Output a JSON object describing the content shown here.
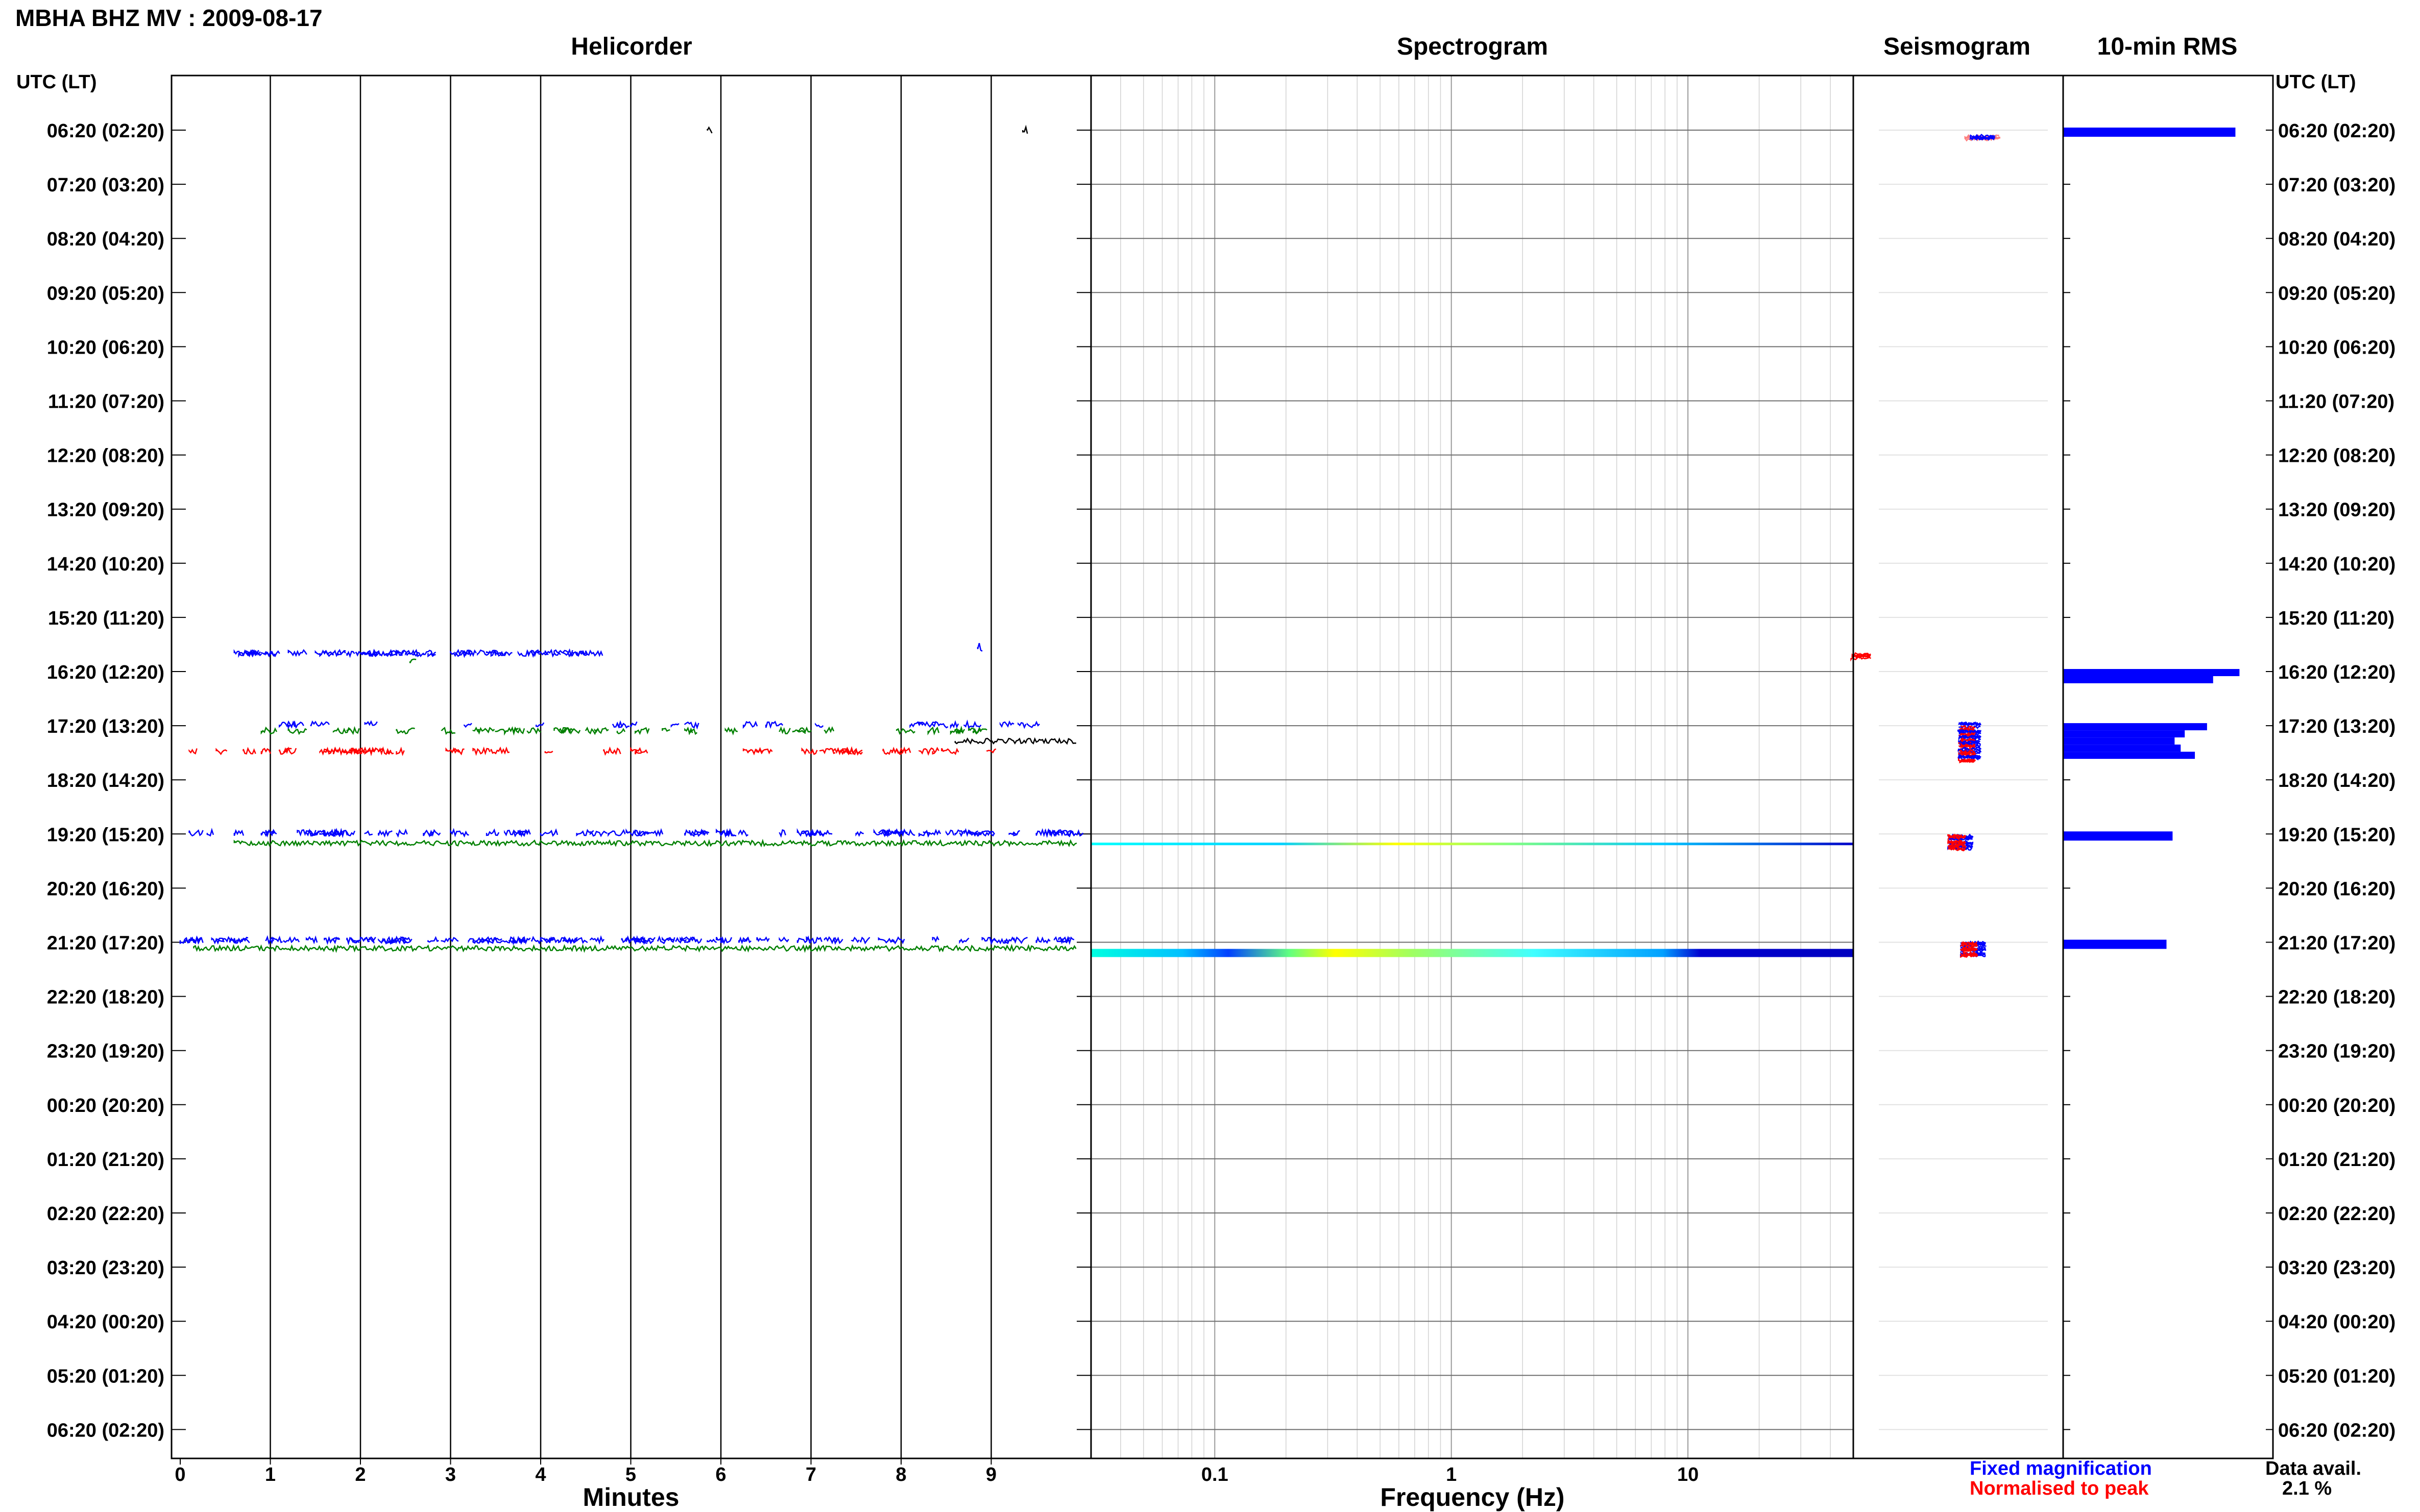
{
  "title": "MBHA BHZ MV : 2009-08-17",
  "panels": {
    "helicorder": "Helicorder",
    "spectrogram": "Spectrogram",
    "seismogram": "Seismogram",
    "rms": "10-min RMS"
  },
  "axis": {
    "utc_label_left": "UTC (LT)",
    "utc_label_right": "UTC (LT)",
    "minutes_label": "Minutes",
    "frequency_label": "Frequency (Hz)",
    "row_labels": [
      "06:20 (02:20)",
      "07:20 (03:20)",
      "08:20 (04:20)",
      "09:20 (05:20)",
      "10:20 (06:20)",
      "11:20 (07:20)",
      "12:20 (08:20)",
      "13:20 (09:20)",
      "14:20 (10:20)",
      "15:20 (11:20)",
      "16:20 (12:20)",
      "17:20 (13:20)",
      "18:20 (14:20)",
      "19:20 (15:20)",
      "20:20 (16:20)",
      "21:20 (17:20)",
      "22:20 (18:20)",
      "23:20 (19:20)",
      "00:20 (20:20)",
      "01:20 (21:20)",
      "02:20 (22:20)",
      "03:20 (23:20)",
      "04:20 (00:20)",
      "05:20 (01:20)",
      "06:20 (02:20)"
    ],
    "minute_ticks": [
      "0",
      "1",
      "2",
      "3",
      "4",
      "5",
      "6",
      "7",
      "8",
      "9"
    ],
    "frequency_ticks": [
      "0.1",
      "1",
      "10"
    ]
  },
  "legend": {
    "fixed": "Fixed magnification",
    "normalised": "Normalised to peak",
    "fixed_color": "#0000ff",
    "normalised_color": "#ff0000"
  },
  "data_availability": {
    "label": "Data avail.",
    "value": "2.1 %"
  },
  "chart_data": [
    {
      "type": "line",
      "panel": "Helicorder",
      "xlabel": "Minutes",
      "xlim": [
        0,
        10
      ],
      "trace_colors": [
        "#000000",
        "#ff0000",
        "#0000ff",
        "#008000"
      ],
      "active_rows": [
        "06:20 (02:20)",
        "16:20 (12:20)",
        "17:20 (13:20)",
        "19:20 (15:20)",
        "21:20 (17:20)"
      ]
    },
    {
      "type": "heatmap",
      "panel": "Spectrogram",
      "xlabel": "Frequency (Hz)",
      "xscale": "log",
      "xlim": [
        0.03,
        50
      ],
      "active_rows": [
        "19:20 (15:20)",
        "21:20 (17:20)"
      ]
    },
    {
      "type": "line",
      "panel": "Seismogram",
      "active_rows": [
        "06:20 (02:20)",
        "16:20 (12:20)",
        "17:20 (13:20)",
        "19:20 (15:20)",
        "21:20 (17:20)"
      ]
    },
    {
      "type": "bar",
      "panel": "10-min RMS",
      "orientation": "horizontal",
      "bar_color": "#0000ff",
      "bars": [
        {
          "row": "06:20 (02:20)",
          "segments": [
            0.85
          ]
        },
        {
          "row": "16:20 (12:20)",
          "segments": [
            0.87,
            0.74
          ]
        },
        {
          "row": "17:20 (13:20)",
          "segments": [
            0.71,
            0.6,
            0.55,
            0.58,
            0.65
          ]
        },
        {
          "row": "19:20 (15:20)",
          "segments": [
            0.54
          ]
        },
        {
          "row": "21:20 (17:20)",
          "segments": [
            0.51
          ]
        }
      ]
    }
  ]
}
